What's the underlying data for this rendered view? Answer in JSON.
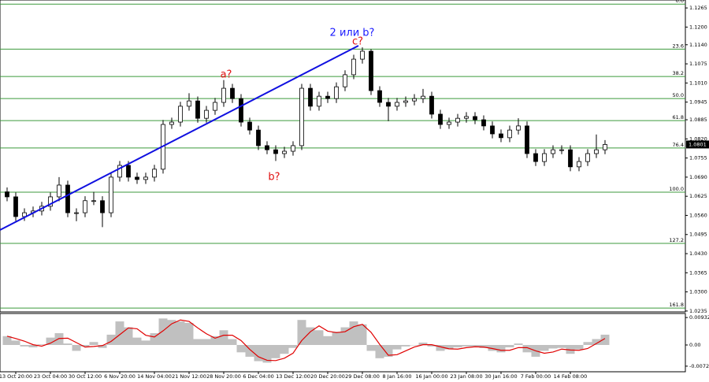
{
  "chart_data": {
    "type": "candlestick",
    "categories": [
      null,
      "13 Oct 20:00",
      null,
      null,
      null,
      "23 Oct 04:00",
      null,
      null,
      null,
      "30 Oct 12:00",
      null,
      null,
      null,
      "6 Nov 20:00",
      null,
      null,
      null,
      "14 Nov 04:00",
      null,
      null,
      null,
      "21 Nov 12:00",
      null,
      null,
      null,
      "28 Nov 20:00",
      null,
      null,
      null,
      "6 Dec 04:00",
      null,
      null,
      null,
      "13 Dec 12:00",
      null,
      null,
      null,
      "20 Dec 20:00",
      null,
      null,
      null,
      "29 Dec 08:00",
      null,
      null,
      null,
      "8 Jan 16:00",
      null,
      null,
      null,
      "16 Jan 00:00",
      null,
      null,
      null,
      "23 Jan 08:00",
      null,
      null,
      null,
      "30 Jan 16:00",
      null,
      null,
      null,
      "7 Feb 00:00",
      null,
      null,
      null,
      "14 Feb 08:00",
      null,
      null,
      null,
      null
    ],
    "open": [
      1.064,
      1.0623,
      1.0556,
      1.0569,
      1.0575,
      1.0591,
      1.0623,
      1.0663,
      1.0569,
      1.0569,
      1.061,
      1.061,
      1.0569,
      1.069,
      1.073,
      1.069,
      1.0682,
      1.069,
      1.0717,
      1.0869,
      1.0877,
      1.0931,
      1.0949,
      1.089,
      1.0917,
      1.0944,
      1.0992,
      1.0957,
      1.0877,
      1.085,
      1.0797,
      1.0783,
      1.077,
      1.0778,
      1.0797,
      1.0992,
      1.0931,
      1.0965,
      1.0957,
      1.0997,
      1.1038,
      1.1091,
      1.1118,
      1.0984,
      1.0944,
      1.0931,
      1.0944,
      1.0949,
      1.0957,
      1.0965,
      1.0904,
      1.0869,
      1.0877,
      1.089,
      1.0896,
      1.0885,
      1.0864,
      1.0837,
      1.0824,
      1.085,
      1.0864,
      1.077,
      1.0743,
      1.077,
      1.0783,
      1.0783,
      1.0725,
      1.0743,
      1.077,
      1.0783
    ],
    "high": [
      1.0655,
      1.0638,
      1.0584,
      1.059,
      1.0606,
      1.0638,
      1.069,
      1.0678,
      1.0584,
      1.0625,
      1.064,
      1.0625,
      1.0705,
      1.0745,
      1.0745,
      1.0705,
      1.0705,
      1.0732,
      1.0884,
      1.0892,
      1.0946,
      1.0975,
      1.0964,
      1.0932,
      1.0959,
      1.102,
      1.1007,
      1.0972,
      1.0892,
      1.0865,
      1.0812,
      1.0798,
      1.0793,
      1.0812,
      1.1007,
      1.1007,
      1.098,
      1.098,
      1.1012,
      1.1053,
      1.1106,
      1.1131,
      1.1125,
      1.0999,
      1.0959,
      1.0959,
      1.0964,
      1.0972,
      1.099,
      1.098,
      1.0919,
      1.0892,
      1.0905,
      1.0911,
      1.0911,
      1.09,
      1.0879,
      1.0852,
      1.0865,
      1.089,
      1.0879,
      1.0785,
      1.0785,
      1.0798,
      1.0798,
      1.0798,
      1.0758,
      1.0785,
      1.0835,
      1.0816
    ],
    "low": [
      1.0608,
      1.0541,
      1.0541,
      1.0554,
      1.056,
      1.0576,
      1.0608,
      1.0554,
      1.054,
      1.0554,
      1.0595,
      1.052,
      1.0554,
      1.0675,
      1.0675,
      1.0667,
      1.0667,
      1.0675,
      1.0702,
      1.0854,
      1.0862,
      1.0916,
      1.0875,
      1.0875,
      1.0902,
      1.0929,
      1.0942,
      1.0862,
      1.0835,
      1.0782,
      1.0768,
      1.0745,
      1.0755,
      1.0763,
      1.0782,
      1.0916,
      1.0916,
      1.0942,
      1.0942,
      1.0982,
      1.1023,
      1.1076,
      1.0969,
      1.0929,
      1.088,
      1.0916,
      1.0929,
      1.0934,
      1.0942,
      1.0889,
      1.0854,
      1.0854,
      1.0862,
      1.0875,
      1.087,
      1.0849,
      1.0822,
      1.0809,
      1.0809,
      1.0835,
      1.0755,
      1.0728,
      1.0728,
      1.0755,
      1.0768,
      1.071,
      1.071,
      1.0728,
      1.0755,
      1.0768
    ],
    "close": [
      1.0623,
      1.0556,
      1.0569,
      1.0575,
      1.0591,
      1.0623,
      1.0663,
      1.0569,
      1.0569,
      1.061,
      1.061,
      1.0569,
      1.069,
      1.073,
      1.069,
      1.0682,
      1.069,
      1.0717,
      1.0869,
      1.0877,
      1.0931,
      1.0949,
      1.089,
      1.0917,
      1.0944,
      1.0992,
      1.0957,
      1.0877,
      1.085,
      1.0797,
      1.0783,
      1.077,
      1.0778,
      1.0797,
      1.0992,
      1.0931,
      1.0965,
      1.0957,
      1.0997,
      1.1038,
      1.1091,
      1.1118,
      1.0984,
      1.0944,
      1.0931,
      1.0944,
      1.0949,
      1.0957,
      1.0965,
      1.0904,
      1.0869,
      1.0877,
      1.089,
      1.0896,
      1.0885,
      1.0864,
      1.0837,
      1.0824,
      1.085,
      1.0864,
      1.077,
      1.0743,
      1.077,
      1.0783,
      1.0783,
      1.0725,
      1.0743,
      1.077,
      1.0783,
      1.0801
    ],
    "ylim": [
      1.0232,
      1.1292
    ],
    "yticks": [
      1.1265,
      {
        "value": 1.12,
        "label": "1.1200"
      },
      {
        "value": 1.114,
        "label": "1.1140"
      },
      1.1075,
      {
        "value": 1.101,
        "label": "1.1010"
      },
      1.0945,
      1.0885,
      {
        "value": 1.082,
        "label": "1.0820"
      },
      1.0755,
      {
        "value": 1.069,
        "label": "1.0690"
      },
      1.0625,
      {
        "value": 1.056,
        "label": "1.0560"
      },
      1.0495,
      {
        "value": 1.043,
        "label": "1.0430"
      },
      1.0365,
      {
        "value": 1.03,
        "label": "1.0300"
      },
      1.0235
    ],
    "fib_color": "#3c9a3c",
    "fib_levels": [
      {
        "label": "0.0",
        "price": 1.1278
      },
      {
        "label": "23.6",
        "price": 1.1125
      },
      {
        "label": "38.2",
        "price": 1.1032
      },
      {
        "label": "50.0",
        "price": 1.0957
      },
      {
        "label": "61.8",
        "price": 1.0882
      },
      {
        "label": "76.4",
        "price": 1.0789
      },
      {
        "label": "100.0",
        "price": 1.0639
      },
      {
        "label": "127.2",
        "price": 1.0465
      },
      {
        "label": "161.8",
        "price": 1.0245
      }
    ],
    "trendline_color": "#1010e0",
    "annotations": [
      {
        "text": "2 или b?",
        "color": "#1a1aff"
      },
      {
        "text": "c?",
        "color": "#e01010"
      },
      {
        "text": "a?",
        "color": "#e01010"
      },
      {
        "text": "b?",
        "color": "#e01010"
      }
    ],
    "oscillator": {
      "histogram_color": "#c0c0c0",
      "signal_color": "#e00000",
      "histogram": [
        0.003,
        0.0015,
        -0.0005,
        -0.0008,
        0.0002,
        0.0025,
        0.004,
        0.0005,
        -0.002,
        -0.0005,
        0.001,
        -0.001,
        0.0035,
        0.008,
        0.006,
        0.0025,
        0.0015,
        0.004,
        0.009,
        0.0085,
        0.008,
        0.0075,
        0.002,
        0.002,
        0.003,
        0.005,
        0.002,
        -0.0025,
        -0.004,
        -0.0055,
        -0.006,
        -0.0045,
        -0.003,
        -0.001,
        0.0085,
        0.006,
        0.005,
        0.003,
        0.0045,
        0.006,
        0.008,
        0.007,
        -0.002,
        -0.0045,
        -0.004,
        -0.0015,
        -0.0005,
        0.0,
        0.0008,
        -0.0005,
        -0.002,
        -0.0015,
        -0.0008,
        -0.0005,
        -0.0005,
        -0.001,
        -0.002,
        -0.0025,
        -0.0008,
        0.0005,
        -0.0025,
        -0.004,
        -0.002,
        -0.0012,
        -0.001,
        -0.003,
        -0.0015,
        0.001,
        0.002,
        0.0035
      ],
      "signal": [
        0.003,
        0.0022,
        0.0013,
        0.0001,
        -0.0004,
        0.0006,
        0.0022,
        0.0023,
        0.0008,
        -0.0007,
        -0.0005,
        -0.0002,
        0.0012,
        0.0035,
        0.0058,
        0.0055,
        0.0033,
        0.0027,
        0.0048,
        0.0072,
        0.0085,
        0.008,
        0.0058,
        0.0038,
        0.0023,
        0.0033,
        0.0033,
        0.0015,
        -0.0015,
        -0.004,
        -0.0052,
        -0.0053,
        -0.0045,
        -0.0028,
        0.0015,
        0.0045,
        0.0065,
        0.0047,
        0.0042,
        0.0045,
        0.0062,
        0.007,
        0.0043,
        0.0002,
        -0.0035,
        -0.0033,
        -0.002,
        -0.0007,
        0.0001,
        0.0001,
        -0.0006,
        -0.0013,
        -0.0014,
        -0.0009,
        -0.0006,
        -0.0007,
        -0.0012,
        -0.0018,
        -0.0018,
        -0.0009,
        -0.0009,
        -0.002,
        -0.0028,
        -0.0024,
        -0.0014,
        -0.0017,
        -0.0018,
        -0.0012,
        0.0005,
        0.0022
      ],
      "ylim": [
        -0.0091,
        0.0107
      ],
      "yticks": [
        0.00932,
        {
          "value": 0,
          "label": "0.00"
        },
        -0.0072
      ]
    }
  }
}
